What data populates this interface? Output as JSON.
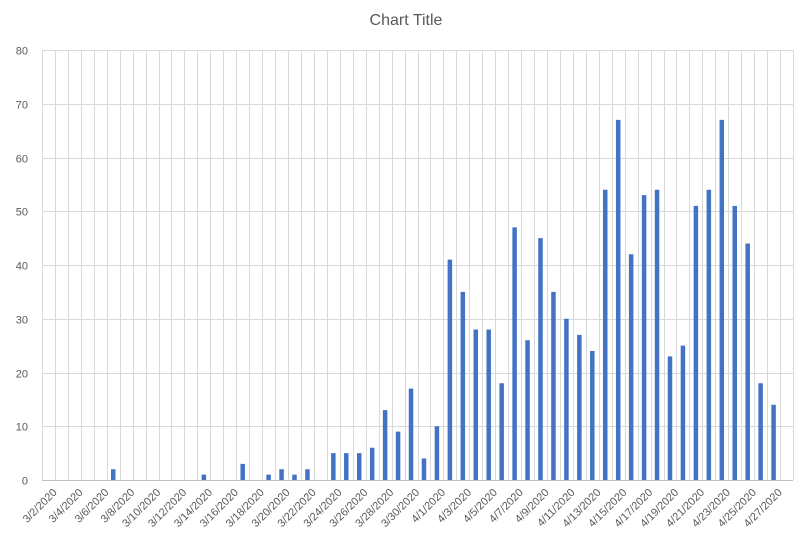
{
  "chart_data": {
    "type": "bar",
    "title": "Chart Title",
    "xlabel": "",
    "ylabel": "",
    "ylim": [
      0,
      80
    ],
    "yticks": [
      0,
      10,
      20,
      30,
      40,
      50,
      60,
      70,
      80
    ],
    "grid": true,
    "bar_color": "#4472C4",
    "categories": [
      "3/2/2020",
      "3/3/2020",
      "3/4/2020",
      "3/5/2020",
      "3/6/2020",
      "3/7/2020",
      "3/8/2020",
      "3/9/2020",
      "3/10/2020",
      "3/11/2020",
      "3/12/2020",
      "3/13/2020",
      "3/14/2020",
      "3/15/2020",
      "3/16/2020",
      "3/17/2020",
      "3/18/2020",
      "3/19/2020",
      "3/20/2020",
      "3/21/2020",
      "3/22/2020",
      "3/23/2020",
      "3/24/2020",
      "3/25/2020",
      "3/26/2020",
      "3/27/2020",
      "3/28/2020",
      "3/29/2020",
      "3/30/2020",
      "3/31/2020",
      "4/1/2020",
      "4/2/2020",
      "4/3/2020",
      "4/4/2020",
      "4/5/2020",
      "4/6/2020",
      "4/7/2020",
      "4/8/2020",
      "4/9/2020",
      "4/10/2020",
      "4/11/2020",
      "4/12/2020",
      "4/13/2020",
      "4/14/2020",
      "4/15/2020",
      "4/16/2020",
      "4/17/2020",
      "4/18/2020",
      "4/19/2020",
      "4/20/2020",
      "4/21/2020",
      "4/22/2020",
      "4/23/2020",
      "4/24/2020",
      "4/25/2020",
      "4/26/2020",
      "4/27/2020",
      "4/28/2020"
    ],
    "x_tick_labels": [
      "3/2/2020",
      "3/4/2020",
      "3/6/2020",
      "3/8/2020",
      "3/10/2020",
      "3/12/2020",
      "3/14/2020",
      "3/16/2020",
      "3/18/2020",
      "3/20/2020",
      "3/22/2020",
      "3/24/2020",
      "3/26/2020",
      "3/28/2020",
      "3/30/2020",
      "4/1/2020",
      "4/3/2020",
      "4/5/2020",
      "4/7/2020",
      "4/9/2020",
      "4/11/2020",
      "4/13/2020",
      "4/15/2020",
      "4/17/2020",
      "4/19/2020",
      "4/21/2020",
      "4/23/2020",
      "4/25/2020",
      "4/27/2020"
    ],
    "values": [
      0,
      0,
      0,
      0,
      0,
      2,
      0,
      0,
      0,
      0,
      0,
      0,
      1,
      0,
      0,
      3,
      0,
      1,
      2,
      1,
      2,
      0,
      5,
      5,
      5,
      6,
      13,
      9,
      17,
      4,
      10,
      41,
      35,
      28,
      28,
      18,
      47,
      26,
      45,
      35,
      30,
      27,
      24,
      54,
      67,
      42,
      53,
      54,
      23,
      25,
      51,
      54,
      67,
      51,
      44,
      18,
      14,
      0
    ]
  }
}
